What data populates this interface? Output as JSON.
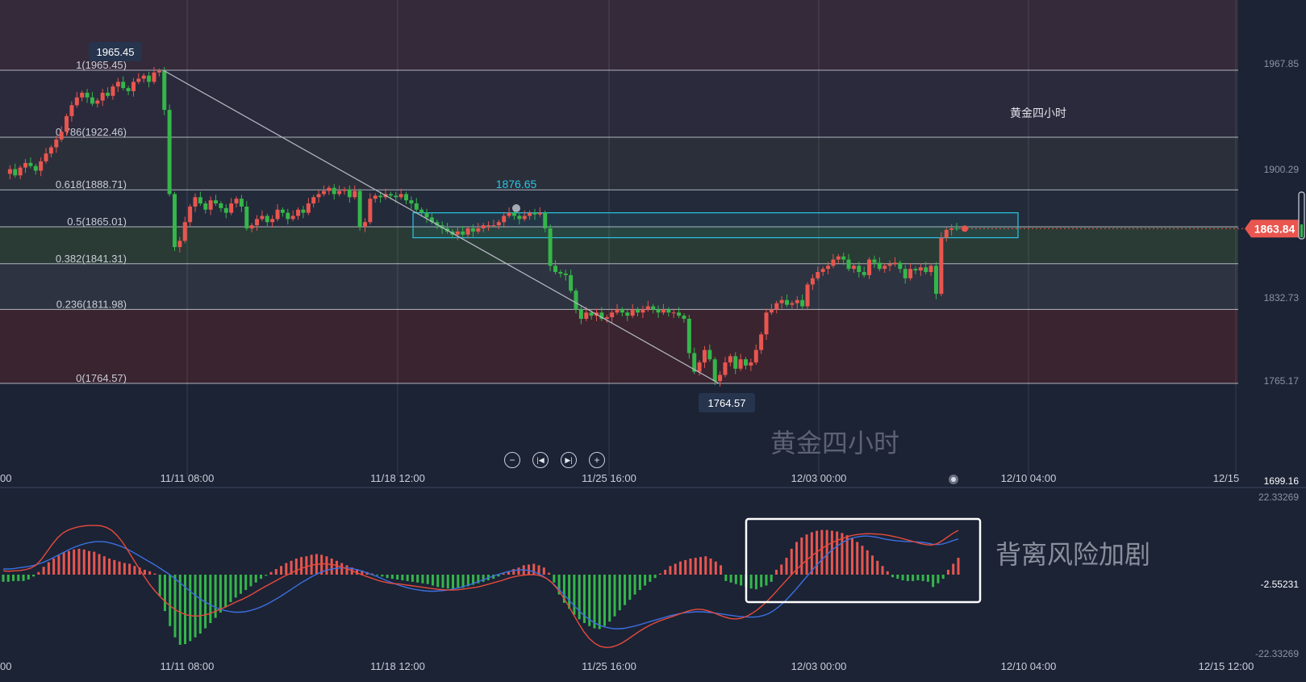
{
  "colors": {
    "bg": "#1b2335",
    "up": "#e8564f",
    "down": "#35b64a",
    "grid": "#c8ccd4",
    "box": "#29c6e4",
    "diff": "#3d6fe0",
    "dea": "#e84a3c",
    "label": "#c9ced8"
  },
  "chart_data": [
    {
      "type": "candlestick",
      "title": "黄金四小时",
      "watermark": "黄金四小时",
      "x_ticks": [
        "00",
        "11/11 08:00",
        "11/18 12:00",
        "11/25 16:00",
        "12/03 00:00",
        "12/10 04:00",
        "12/15"
      ],
      "y_ticks": [
        1967.85,
        1900.29,
        1832.73,
        1765.17,
        1699.16
      ],
      "ylim": [
        1699.16,
        2010
      ],
      "price_tag": 1863.84,
      "fib_levels": [
        {
          "label": "1(1965.45)",
          "value": 1965.45
        },
        {
          "label": "0.786(1922.46)",
          "value": 1922.46
        },
        {
          "label": "0.618(1888.71)",
          "value": 1888.71
        },
        {
          "label": "0.5(1865.01)",
          "value": 1865.01
        },
        {
          "label": "0.382(1841.31)",
          "value": 1841.31
        },
        {
          "label": "0.236(1811.98)",
          "value": 1811.98
        },
        {
          "label": "0(1764.57)",
          "value": 1764.57
        }
      ],
      "annotations": [
        {
          "text": "1965.45",
          "value": 1965.45
        },
        {
          "text": "1876.65",
          "value": 1876.65
        },
        {
          "text": "1764.57",
          "value": 1764.57
        }
      ],
      "zone": {
        "from": 1858,
        "to": 1874
      },
      "trendline": [
        [
          0,
          1965.45
        ],
        [
          1,
          1764.57
        ]
      ],
      "closes": [
        1899,
        1902,
        1898,
        1903,
        1906,
        1904,
        1901,
        1907,
        1912,
        1916,
        1921,
        1926,
        1936,
        1943,
        1948,
        1951,
        1948,
        1944,
        1946,
        1951,
        1949,
        1955,
        1958,
        1954,
        1952,
        1958,
        1960,
        1962,
        1958,
        1964,
        1965,
        1940,
        1886,
        1852,
        1856,
        1868,
        1878,
        1884,
        1880,
        1876,
        1882,
        1880,
        1877,
        1874,
        1880,
        1883,
        1878,
        1864,
        1866,
        1870,
        1872,
        1868,
        1870,
        1876,
        1874,
        1870,
        1872,
        1876,
        1874,
        1880,
        1884,
        1886,
        1888,
        1890,
        1886,
        1888,
        1889,
        1884,
        1888,
        1865,
        1868,
        1883,
        1885,
        1884,
        1886,
        1885,
        1884,
        1886,
        1882,
        1880,
        1876,
        1874,
        1871,
        1868,
        1866,
        1864,
        1862,
        1860,
        1862,
        1860,
        1864,
        1862,
        1864,
        1866,
        1866,
        1866,
        1868,
        1872,
        1874,
        1872,
        1870,
        1872,
        1874,
        1873,
        1874,
        1864,
        1840,
        1836,
        1835,
        1834,
        1824,
        1812,
        1806,
        1810,
        1808,
        1810,
        1806,
        1807,
        1810,
        1812,
        1810,
        1808,
        1812,
        1810,
        1812,
        1814,
        1812,
        1810,
        1812,
        1810,
        1810,
        1808,
        1806,
        1784,
        1772,
        1778,
        1786,
        1780,
        1766,
        1770,
        1778,
        1782,
        1774,
        1780,
        1776,
        1778,
        1786,
        1796,
        1810,
        1812,
        1816,
        1818,
        1815,
        1816,
        1818,
        1814,
        1828,
        1832,
        1836,
        1838,
        1840,
        1844,
        1846,
        1844,
        1838,
        1840,
        1836,
        1834,
        1844,
        1842,
        1838,
        1840,
        1841,
        1842,
        1838,
        1832,
        1838,
        1837,
        1839,
        1836,
        1840,
        1822,
        1858,
        1863,
        1864,
        1863.84
      ]
    },
    {
      "type": "bar",
      "title": "",
      "x_ticks": [
        "00",
        "11/11 08:00",
        "11/18 12:00",
        "11/25 16:00",
        "12/03 00:00",
        "12/10 04:00",
        "12/15 12:00"
      ],
      "y_ticks": [
        "22.33269",
        "-2.55231",
        "-22.33269"
      ],
      "ylim": [
        -22.33269,
        22.33269
      ],
      "annotation": "背离风险加剧",
      "series": [
        {
          "name": "",
          "values": [
            -1.9,
            -1.9,
            -1.7,
            -1.7,
            -1.7,
            -1.3,
            -0.5,
            0.7,
            2.1,
            3.3,
            4.3,
            5.1,
            5.9,
            6.3,
            6.7,
            6.9,
            6.7,
            6.3,
            6.1,
            5.5,
            4.9,
            4.3,
            3.9,
            3.5,
            3.1,
            2.9,
            2.3,
            1.9,
            1.3,
            0.9,
            0.3,
            -5.7,
            -9.7,
            -13.7,
            -16.7,
            -18.7,
            -18.5,
            -17.7,
            -16.7,
            -15.7,
            -14.3,
            -12.9,
            -11.5,
            -10.1,
            -8.7,
            -7.3,
            -6.1,
            -5.1,
            -4.1,
            -3.1,
            -2.1,
            -1.1,
            -0.3,
            0.7,
            1.5,
            2.3,
            3.1,
            3.7,
            4.3,
            4.7,
            4.9,
            5.3,
            5.5,
            5.3,
            4.9,
            4.3,
            3.7,
            3.1,
            2.5,
            1.9,
            1.5,
            1.1,
            0.7,
            0.3,
            -0.1,
            -0.5,
            -0.9,
            -1.1,
            -1.3,
            -1.5,
            -1.7,
            -1.9,
            -2.1,
            -2.3,
            -2.5,
            -2.9,
            -3.3,
            -3.5,
            -3.7,
            -3.9,
            -3.7,
            -3.5,
            -3.1,
            -2.7,
            -2.3,
            -1.9,
            -1.5,
            -1.1,
            -0.5,
            0.3,
            0.9,
            1.5,
            1.9,
            2.5,
            2.7,
            2.9,
            2.5,
            1.9,
            0.5,
            -2.1,
            -5.3,
            -7.5,
            -9.1,
            -10.7,
            -11.9,
            -12.9,
            -13.7,
            -14.3,
            -14.5,
            -13.7,
            -12.5,
            -11.1,
            -9.5,
            -8.1,
            -6.7,
            -5.3,
            -4.1,
            -2.9,
            -1.9,
            -0.9,
            0.3,
            1.3,
            2.3,
            2.9,
            3.5,
            3.9,
            4.3,
            4.5,
            4.7,
            4.9,
            4.3,
            3.5,
            2.5,
            -1.7,
            -2.1,
            -2.5,
            -2.9,
            -3.3,
            -3.7,
            -3.9,
            -3.3,
            -2.9,
            -1.9,
            1.3,
            2.7,
            4.5,
            6.9,
            8.7,
            9.9,
            10.7,
            11.3,
            11.7,
            11.9,
            11.9,
            11.7,
            11.5,
            11.1,
            10.5,
            9.7,
            8.7,
            7.7,
            6.5,
            5.1,
            3.7,
            2.3,
            0.9,
            -0.7,
            -1.1,
            -1.5,
            -1.7,
            -1.7,
            -1.5,
            -1.7,
            -1.9,
            -3.3,
            -2.3,
            -1.1,
            1.3,
            2.9,
            4.5
          ]
        }
      ],
      "lines": [
        {
          "name": "",
          "values": [
            1.5,
            1.5,
            1.6,
            1.8,
            2.0,
            2.2,
            2.5,
            2.9,
            3.4,
            4.0,
            4.7,
            5.4,
            6.1,
            6.8,
            7.4,
            7.9,
            8.3,
            8.6,
            8.8,
            8.8,
            8.7,
            8.4,
            8.0,
            7.5,
            6.9,
            6.2,
            5.4,
            4.6,
            3.8,
            3.0,
            2.2,
            1.3,
            0.4,
            -0.6,
            -1.7,
            -2.8,
            -4.0,
            -5.1,
            -6.1,
            -7.0,
            -7.8,
            -8.5,
            -9.1,
            -9.5,
            -9.8,
            -10.0,
            -10.0,
            -9.9,
            -9.6,
            -9.2,
            -8.7,
            -8.1,
            -7.4,
            -6.6,
            -5.8,
            -4.9,
            -4.0,
            -3.1,
            -2.2,
            -1.4,
            -0.6,
            0.1,
            0.7,
            1.2,
            1.5,
            1.7,
            1.8,
            1.8,
            1.6,
            1.3,
            0.9,
            0.4,
            -0.1,
            -0.6,
            -1.2,
            -1.8,
            -2.3,
            -2.8,
            -3.2,
            -3.6,
            -3.9,
            -4.1,
            -4.3,
            -4.4,
            -4.4,
            -4.3,
            -4.2,
            -4.0,
            -3.7,
            -3.4,
            -3.0,
            -2.6,
            -2.1,
            -1.6,
            -1.1,
            -0.6,
            -0.1,
            0.3,
            0.7,
            1.0,
            1.2,
            1.3,
            1.2,
            0.9,
            0.4,
            -0.3,
            -1.2,
            -2.3,
            -3.6,
            -5.0,
            -6.5,
            -8.0,
            -9.4,
            -10.7,
            -11.8,
            -12.7,
            -13.4,
            -13.9,
            -14.2,
            -14.4,
            -14.4,
            -14.3,
            -14.0,
            -13.7,
            -13.3,
            -12.9,
            -12.5,
            -12.1,
            -11.7,
            -11.3,
            -10.9,
            -10.6,
            -10.3,
            -10.1,
            -10.0,
            -9.9,
            -9.9,
            -10.0,
            -10.1,
            -10.3,
            -10.5,
            -10.7,
            -10.9,
            -11.1,
            -11.2,
            -11.3,
            -11.3,
            -11.2,
            -10.9,
            -10.4,
            -9.6,
            -8.6,
            -7.4,
            -6.0,
            -4.5,
            -2.9,
            -1.3,
            0.3,
            1.9,
            3.4,
            4.8,
            6.1,
            7.2,
            8.2,
            9.0,
            9.6,
            10.0,
            10.2,
            10.3,
            10.2,
            10.0,
            9.7,
            9.4,
            9.2,
            9.0,
            8.9,
            8.8,
            8.8,
            8.7,
            8.6,
            8.4,
            8.1,
            8.0,
            8.2,
            8.6,
            9.1,
            9.5
          ]
        },
        {
          "name": "",
          "values": [
            1.0,
            0.9,
            1.0,
            1.1,
            1.3,
            1.7,
            2.5,
            4.0,
            6.0,
            8.0,
            9.8,
            11.1,
            11.9,
            12.4,
            12.8,
            13.0,
            13.1,
            13.1,
            13.0,
            12.6,
            11.8,
            10.4,
            8.6,
            6.4,
            4.0,
            1.7,
            -0.5,
            -2.6,
            -4.4,
            -6.0,
            -7.4,
            -8.6,
            -9.6,
            -10.3,
            -10.8,
            -11.0,
            -11.0,
            -10.8,
            -10.4,
            -9.8,
            -9.2,
            -8.6,
            -7.9,
            -7.2,
            -6.6,
            -5.9,
            -5.1,
            -4.2,
            -3.4,
            -2.6,
            -1.8,
            -1.0,
            -0.3,
            0.4,
            1.1,
            1.7,
            2.2,
            2.6,
            2.8,
            2.9,
            2.8,
            2.6,
            2.2,
            1.7,
            1.2,
            0.6,
            0.0,
            -0.5,
            -1.0,
            -1.5,
            -1.9,
            -2.2,
            -2.4,
            -2.5,
            -2.7,
            -2.9,
            -3.1,
            -3.3,
            -3.5,
            -3.7,
            -3.9,
            -4.0,
            -4.1,
            -4.1,
            -4.0,
            -3.8,
            -3.6,
            -3.4,
            -3.1,
            -2.7,
            -2.3,
            -1.9,
            -1.5,
            -1.0,
            -0.6,
            -0.3,
            -0.1,
            0.0,
            0.0,
            -0.3,
            -0.9,
            -2.0,
            -3.6,
            -5.6,
            -7.9,
            -10.4,
            -12.9,
            -15.2,
            -17.0,
            -18.3,
            -19.1,
            -19.4,
            -19.3,
            -18.9,
            -18.2,
            -17.3,
            -16.3,
            -15.3,
            -14.4,
            -13.6,
            -12.9,
            -12.3,
            -11.8,
            -11.3,
            -10.8,
            -10.3,
            -9.8,
            -9.4,
            -9.2,
            -9.3,
            -9.7,
            -10.2,
            -10.8,
            -11.3,
            -11.7,
            -11.8,
            -11.6,
            -11.1,
            -10.3,
            -9.3,
            -8.1,
            -6.7,
            -5.2,
            -3.6,
            -2.0,
            -0.4,
            1.1,
            2.5,
            3.8,
            5.0,
            6.1,
            7.1,
            8.0,
            8.7,
            9.3,
            9.8,
            10.3,
            10.6,
            10.8,
            10.9,
            10.9,
            10.8,
            10.7,
            10.5,
            10.2,
            9.9,
            9.5,
            9.1,
            8.7,
            8.3,
            8.0,
            7.9,
            8.2,
            9.0,
            10.0,
            11.0,
            11.8
          ]
        }
      ]
    }
  ]
}
